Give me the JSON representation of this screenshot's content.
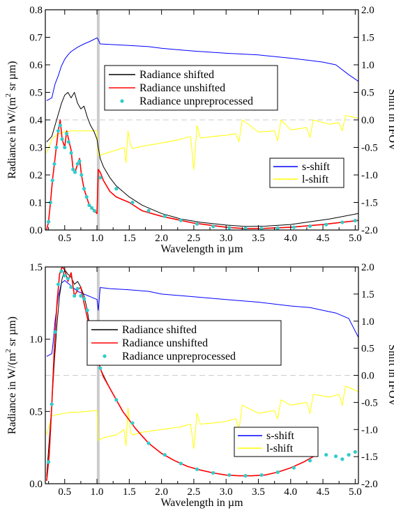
{
  "chart_data": [
    {
      "type": "line",
      "xlabel": "Wavelength in µm",
      "ylabel_parts": [
        "Radiance in W/(m",
        "2",
        " sr µm)"
      ],
      "y2label": "Shift in IFOV",
      "xlim": [
        0.2,
        5.05
      ],
      "ylim": [
        0,
        0.8
      ],
      "y2lim": [
        -2.0,
        2.0
      ],
      "xticks": [
        0.5,
        1.0,
        1.5,
        2.0,
        2.5,
        3.0,
        3.5,
        4.0,
        4.5,
        5.0
      ],
      "xtick_labels": [
        "0.5",
        "1.0",
        "1.5",
        "2.0",
        "2.5",
        "3.0",
        "3.5",
        "4.0",
        "4.5",
        "5.0"
      ],
      "yticks": [
        0,
        0.1,
        0.2,
        0.3,
        0.4,
        0.5,
        0.6,
        0.7,
        0.8
      ],
      "ytick_labels": [
        "0.0",
        "0.1",
        "0.2",
        "0.3",
        "0.4",
        "0.5",
        "0.6",
        "0.7",
        "0.8"
      ],
      "y2ticks": [
        -2,
        -1.5,
        -1,
        -0.5,
        0,
        0.5,
        1,
        1.5,
        2
      ],
      "y2tick_labels": [
        "-2.0",
        "-1.5",
        "-1.0",
        "-0.5",
        "0.0",
        "0.5",
        "1.0",
        "1.5",
        "2.0"
      ],
      "vline_x": 1.02,
      "zero_line_y2": 0,
      "legend1": [
        "Radiance shifted",
        "Radiance unshifted",
        "Radiance unpreprocessed"
      ],
      "legend2": [
        "s-shift",
        "l-shift"
      ],
      "colors": {
        "shifted": "#000000",
        "unshifted": "#ff0000",
        "unpreprocessed": "#33cccc",
        "s_shift": "#0000ff",
        "l_shift": "#ffff00"
      },
      "series": {
        "shifted": {
          "x": [
            0.22,
            0.3,
            0.35,
            0.4,
            0.45,
            0.5,
            0.55,
            0.6,
            0.65,
            0.7,
            0.75,
            0.8,
            0.85,
            0.9,
            0.95,
            1.0,
            1.02,
            1.05,
            1.1,
            1.2,
            1.3,
            1.5,
            1.7,
            2.0,
            2.3,
            2.6,
            3.0,
            3.3,
            3.6,
            4.0,
            4.3,
            4.6,
            5.05
          ],
          "y": [
            0.32,
            0.34,
            0.38,
            0.42,
            0.46,
            0.49,
            0.5,
            0.48,
            0.5,
            0.46,
            0.44,
            0.45,
            0.41,
            0.38,
            0.36,
            0.33,
            0.3,
            0.26,
            0.23,
            0.19,
            0.16,
            0.12,
            0.09,
            0.06,
            0.04,
            0.028,
            0.018,
            0.013,
            0.014,
            0.02,
            0.03,
            0.04,
            0.06
          ]
        },
        "unshifted": {
          "x": [
            0.22,
            0.25,
            0.28,
            0.31,
            0.34,
            0.37,
            0.4,
            0.43,
            0.46,
            0.5,
            0.53,
            0.56,
            0.6,
            0.63,
            0.66,
            0.7,
            0.73,
            0.76,
            0.8,
            0.84,
            0.88,
            0.92,
            0.96,
            1.0,
            1.02,
            1.05,
            1.1,
            1.2,
            1.3,
            1.5,
            1.7,
            2.0,
            2.5,
            3.0,
            3.3,
            3.6,
            4.0,
            4.5,
            5.05
          ],
          "y": [
            0.0,
            0.03,
            0.1,
            0.18,
            0.24,
            0.3,
            0.36,
            0.4,
            0.33,
            0.3,
            0.36,
            0.33,
            0.29,
            0.22,
            0.21,
            0.24,
            0.26,
            0.2,
            0.15,
            0.12,
            0.09,
            0.08,
            0.07,
            0.06,
            0.22,
            0.21,
            0.18,
            0.14,
            0.12,
            0.1,
            0.07,
            0.05,
            0.025,
            0.01,
            0.005,
            0.006,
            0.01,
            0.02,
            0.035
          ]
        },
        "unpreprocessed": {
          "x": [
            0.25,
            0.28,
            0.31,
            0.34,
            0.37,
            0.4,
            0.43,
            0.46,
            0.5,
            0.53,
            0.56,
            0.6,
            0.63,
            0.66,
            0.7,
            0.73,
            0.76,
            0.8,
            0.84,
            0.88,
            0.92,
            0.96,
            1.05,
            1.3,
            1.55,
            1.8,
            2.05,
            2.3,
            2.55,
            2.8,
            3.05,
            3.3,
            3.55,
            3.8,
            4.05,
            4.3,
            4.55,
            4.8,
            5.0
          ],
          "y": [
            0.03,
            0.1,
            0.18,
            0.24,
            0.3,
            0.36,
            0.38,
            0.33,
            0.3,
            0.35,
            0.32,
            0.28,
            0.22,
            0.21,
            0.24,
            0.25,
            0.2,
            0.15,
            0.12,
            0.09,
            0.08,
            0.07,
            0.19,
            0.15,
            0.1,
            0.07,
            0.05,
            0.035,
            0.022,
            0.013,
            0.008,
            0.005,
            0.005,
            0.007,
            0.01,
            0.014,
            0.02,
            0.028,
            0.034
          ]
        },
        "s_shift": {
          "x": [
            0.22,
            0.3,
            0.35,
            0.4,
            0.45,
            0.5,
            0.55,
            0.6,
            0.7,
            0.8,
            0.9,
            1.0,
            1.02,
            1.05,
            1.2,
            1.5,
            1.8,
            2.0,
            2.5,
            3.0,
            3.5,
            4.0,
            4.3,
            4.5,
            4.7,
            4.9,
            5.05
          ],
          "y": [
            0.35,
            0.4,
            0.65,
            0.8,
            0.98,
            1.1,
            1.18,
            1.24,
            1.32,
            1.38,
            1.43,
            1.49,
            1.46,
            1.38,
            1.37,
            1.35,
            1.33,
            1.3,
            1.25,
            1.21,
            1.18,
            1.12,
            1.08,
            1.05,
            1.0,
            0.82,
            0.7
          ]
        },
        "l_shift": {
          "x": [
            0.22,
            0.3,
            0.4,
            0.5,
            0.6,
            0.7,
            0.8,
            0.9,
            1.0,
            1.02,
            1.1,
            1.3,
            1.42,
            1.45,
            1.48,
            1.52,
            1.55,
            1.7,
            2.0,
            2.3,
            2.45,
            2.5,
            2.55,
            2.6,
            2.8,
            3.0,
            3.15,
            3.2,
            3.25,
            3.5,
            3.75,
            3.8,
            3.85,
            4.0,
            4.25,
            4.3,
            4.35,
            4.6,
            4.75,
            4.8,
            4.85,
            5.05
          ],
          "y": [
            -0.6,
            -0.35,
            -0.25,
            -0.22,
            -0.2,
            -0.2,
            -0.2,
            -0.2,
            -0.2,
            -0.65,
            -0.62,
            -0.55,
            -0.5,
            -0.78,
            -0.2,
            -0.45,
            -0.52,
            -0.48,
            -0.42,
            -0.35,
            -0.3,
            -0.9,
            -0.1,
            -0.33,
            -0.3,
            -0.28,
            -0.25,
            -0.4,
            0.0,
            -0.22,
            -0.2,
            -0.38,
            0.0,
            -0.18,
            -0.14,
            -0.32,
            0.0,
            -0.08,
            -0.05,
            -0.2,
            0.08,
            0.03
          ]
        }
      }
    },
    {
      "type": "line",
      "xlabel": "Wavelength in µm",
      "ylabel_parts": [
        "Radiance in W/(m",
        "2",
        " sr µm)"
      ],
      "y2label": "Shift in IFOV",
      "xlim": [
        0.2,
        5.05
      ],
      "ylim": [
        0,
        1.5
      ],
      "y2lim": [
        -2.0,
        2.0
      ],
      "xticks": [
        0.5,
        1.0,
        1.5,
        2.0,
        2.5,
        3.0,
        3.5,
        4.0,
        4.5,
        5.0
      ],
      "xtick_labels": [
        "0.5",
        "1.0",
        "1.5",
        "2.0",
        "2.5",
        "3.0",
        "3.5",
        "4.0",
        "4.5",
        "5.0"
      ],
      "yticks": [
        0,
        0.5,
        1.0,
        1.5
      ],
      "ytick_labels": [
        "0.0",
        "0.5",
        "1.0",
        "1.5"
      ],
      "y2ticks": [
        -2,
        -1.5,
        -1,
        -0.5,
        0,
        0.5,
        1,
        1.5,
        2
      ],
      "y2tick_labels": [
        "-2.0",
        "-1.5",
        "-1.0",
        "-0.5",
        "0.0",
        "0.5",
        "1.0",
        "1.5",
        "2.0"
      ],
      "vline_x": 1.02,
      "zero_line_y2": 0,
      "legend1": [
        "Radiance shifted",
        "Radiance unshifted",
        "Radiance unpreprocessed"
      ],
      "legend2": [
        "s-shift",
        "l-shift"
      ],
      "colors": {
        "shifted": "#000000",
        "unshifted": "#ff0000",
        "unpreprocessed": "#33cccc",
        "s_shift": "#0000ff",
        "l_shift": "#ffff00"
      },
      "series": {
        "shifted": {
          "x": [
            0.22,
            0.26,
            0.3,
            0.34,
            0.38,
            0.42,
            0.46,
            0.5,
            0.55,
            0.6,
            0.65,
            0.7,
            0.75,
            0.8,
            0.85,
            0.9,
            0.95,
            1.0,
            1.05,
            1.1,
            1.2,
            1.3,
            1.4,
            1.5,
            1.6,
            1.8,
            2.0,
            2.2,
            2.4,
            2.6,
            2.8,
            3.0,
            3.2,
            3.4,
            3.6,
            3.8,
            4.0,
            4.2,
            4.4
          ],
          "y": [
            0.05,
            0.3,
            0.55,
            0.85,
            1.1,
            1.3,
            1.42,
            1.48,
            1.45,
            1.43,
            1.38,
            1.4,
            1.36,
            1.3,
            1.2,
            1.05,
            0.95,
            0.9,
            0.8,
            0.75,
            0.66,
            0.58,
            0.5,
            0.44,
            0.38,
            0.28,
            0.21,
            0.16,
            0.12,
            0.095,
            0.075,
            0.06,
            0.055,
            0.055,
            0.06,
            0.08,
            0.11,
            0.15,
            0.2
          ]
        },
        "unshifted": {
          "x": [
            0.22,
            0.26,
            0.3,
            0.34,
            0.38,
            0.42,
            0.46,
            0.5,
            0.55,
            0.6,
            0.65,
            0.7,
            0.75,
            0.8,
            0.85,
            0.9,
            0.95,
            1.0,
            1.05,
            1.1,
            1.2,
            1.3,
            1.4,
            1.5,
            1.6,
            1.8,
            2.0,
            2.2,
            2.4,
            2.6,
            2.8,
            3.0,
            3.2,
            3.4,
            3.6,
            3.8,
            4.0,
            4.2,
            4.4
          ],
          "y": [
            0.02,
            0.2,
            0.55,
            0.95,
            1.25,
            1.45,
            1.5,
            1.48,
            1.4,
            1.46,
            1.3,
            1.34,
            1.36,
            1.25,
            1.15,
            1.05,
            0.95,
            0.88,
            0.8,
            0.74,
            0.66,
            0.58,
            0.5,
            0.44,
            0.38,
            0.28,
            0.21,
            0.16,
            0.12,
            0.095,
            0.075,
            0.06,
            0.055,
            0.055,
            0.06,
            0.08,
            0.11,
            0.15,
            0.2
          ]
        },
        "unpreprocessed": {
          "x": [
            0.25,
            0.3,
            0.35,
            0.4,
            0.45,
            0.5,
            0.55,
            0.6,
            0.65,
            0.7,
            0.75,
            0.8,
            0.85,
            0.9,
            1.05,
            1.3,
            1.55,
            1.8,
            2.05,
            2.3,
            2.55,
            2.8,
            3.05,
            3.3,
            3.55,
            3.8,
            4.05,
            4.3,
            4.55,
            4.7,
            4.8,
            4.9,
            5.0
          ],
          "y": [
            0.15,
            0.55,
            1.05,
            1.38,
            1.47,
            1.44,
            1.42,
            1.36,
            1.3,
            1.35,
            1.3,
            1.28,
            1.2,
            1.0,
            0.8,
            0.58,
            0.42,
            0.28,
            0.2,
            0.14,
            0.1,
            0.075,
            0.06,
            0.055,
            0.06,
            0.08,
            0.11,
            0.16,
            0.2,
            0.19,
            0.17,
            0.2,
            0.22
          ]
        },
        "s_shift": {
          "x": [
            0.22,
            0.3,
            0.32,
            0.35,
            0.4,
            0.45,
            0.5,
            0.55,
            0.6,
            0.7,
            0.8,
            0.9,
            1.0,
            1.02,
            1.05,
            1.2,
            1.5,
            1.8,
            2.0,
            2.5,
            3.0,
            3.5,
            4.0,
            4.3,
            4.5,
            4.7,
            4.9,
            5.05
          ],
          "y": [
            0.35,
            0.4,
            0.6,
            1.0,
            1.45,
            1.7,
            1.75,
            1.7,
            1.65,
            1.55,
            1.5,
            1.45,
            1.4,
            1.2,
            1.62,
            1.6,
            1.58,
            1.55,
            1.5,
            1.45,
            1.4,
            1.35,
            1.28,
            1.25,
            1.2,
            1.15,
            1.05,
            0.7
          ]
        },
        "l_shift": {
          "x": [
            0.22,
            0.3,
            0.4,
            0.5,
            0.6,
            0.7,
            0.8,
            0.9,
            1.0,
            1.02,
            1.1,
            1.3,
            1.42,
            1.45,
            1.48,
            1.52,
            1.55,
            1.7,
            2.0,
            2.3,
            2.45,
            2.5,
            2.55,
            2.6,
            2.8,
            3.0,
            3.15,
            3.2,
            3.25,
            3.5,
            3.75,
            3.8,
            3.85,
            4.0,
            4.25,
            4.3,
            4.35,
            4.6,
            4.75,
            4.8,
            4.85,
            5.05
          ],
          "y": [
            -1.1,
            -0.75,
            -0.72,
            -0.7,
            -0.68,
            -0.68,
            -0.67,
            -0.66,
            -0.65,
            -1.2,
            -1.15,
            -1.1,
            -1.0,
            -1.3,
            -0.6,
            -1.05,
            -1.1,
            -1.05,
            -1.0,
            -0.95,
            -0.9,
            -1.35,
            -0.7,
            -0.9,
            -0.88,
            -0.85,
            -0.8,
            -1.0,
            -0.55,
            -0.7,
            -0.65,
            -0.8,
            -0.45,
            -0.55,
            -0.5,
            -0.7,
            -0.35,
            -0.4,
            -0.35,
            -0.55,
            -0.2,
            -0.3
          ]
        }
      }
    }
  ]
}
